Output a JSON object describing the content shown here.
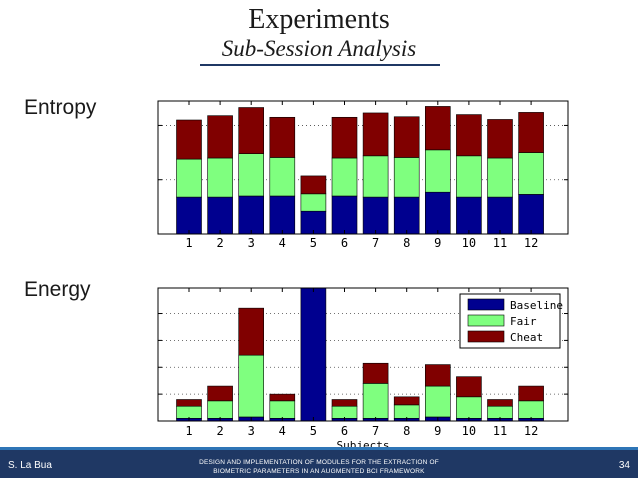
{
  "slide": {
    "title": "Experiments",
    "subtitle": "Sub-Session Analysis",
    "entropy_label": "Entropy",
    "energy_label": "Energy"
  },
  "footer": {
    "author": "S. La Bua",
    "title_line1": "DESIGN AND IMPLEMENTATION OF MODULES FOR THE EXTRACTION OF",
    "title_line2": "BIOMETRIC PARAMETERS IN AN AUGMENTED BCI FRAMEWORK",
    "page": "34"
  },
  "colors": {
    "baseline": "#00008f",
    "fair": "#7fff7f",
    "cheat": "#800000",
    "axis": "#000000",
    "footer_bg": "#1f3864"
  },
  "chart_data": [
    {
      "type": "bar",
      "stacked": true,
      "name": "Entropy",
      "categories": [
        "1",
        "2",
        "3",
        "4",
        "5",
        "6",
        "7",
        "8",
        "9",
        "10",
        "11",
        "12"
      ],
      "series": [
        {
          "name": "Baseline",
          "values": [
            6.8,
            6.8,
            7.0,
            7.0,
            4.2,
            7.0,
            6.8,
            6.8,
            7.7,
            6.8,
            6.8,
            7.3
          ]
        },
        {
          "name": "Fair",
          "values": [
            7.0,
            7.2,
            7.8,
            7.1,
            3.2,
            7.0,
            7.6,
            7.3,
            7.8,
            7.6,
            7.2,
            7.7
          ]
        },
        {
          "name": "Cheat",
          "values": [
            7.2,
            7.8,
            8.5,
            7.4,
            3.3,
            7.5,
            7.9,
            7.5,
            8.0,
            7.6,
            7.1,
            7.4
          ]
        }
      ],
      "ylim": [
        0,
        24.5
      ],
      "grid_y": [
        10,
        20
      ],
      "xlabel": "",
      "ylabel": ""
    },
    {
      "type": "bar",
      "stacked": true,
      "name": "Energy",
      "categories": [
        "1",
        "2",
        "3",
        "4",
        "5",
        "6",
        "7",
        "8",
        "9",
        "10",
        "11",
        "12"
      ],
      "series": [
        {
          "name": "Baseline",
          "values": [
            0.2,
            0.2,
            0.3,
            0.2,
            9.9,
            0.2,
            0.2,
            0.2,
            0.3,
            0.2,
            0.2,
            0.2
          ]
        },
        {
          "name": "Fair",
          "values": [
            0.9,
            1.3,
            4.6,
            1.3,
            0.0,
            0.9,
            2.6,
            1.0,
            2.3,
            1.6,
            0.9,
            1.3
          ]
        },
        {
          "name": "Cheat",
          "values": [
            0.5,
            1.1,
            3.5,
            0.5,
            0.0,
            0.5,
            1.5,
            0.6,
            1.6,
            1.5,
            0.5,
            1.1
          ]
        }
      ],
      "ylim": [
        0,
        9.9
      ],
      "grid_y": [
        2,
        4,
        6,
        8
      ],
      "xlabel": "Subjects",
      "ylabel": "",
      "legend": {
        "position": "top-right",
        "entries": [
          "Baseline",
          "Fair",
          "Cheat"
        ]
      }
    }
  ]
}
